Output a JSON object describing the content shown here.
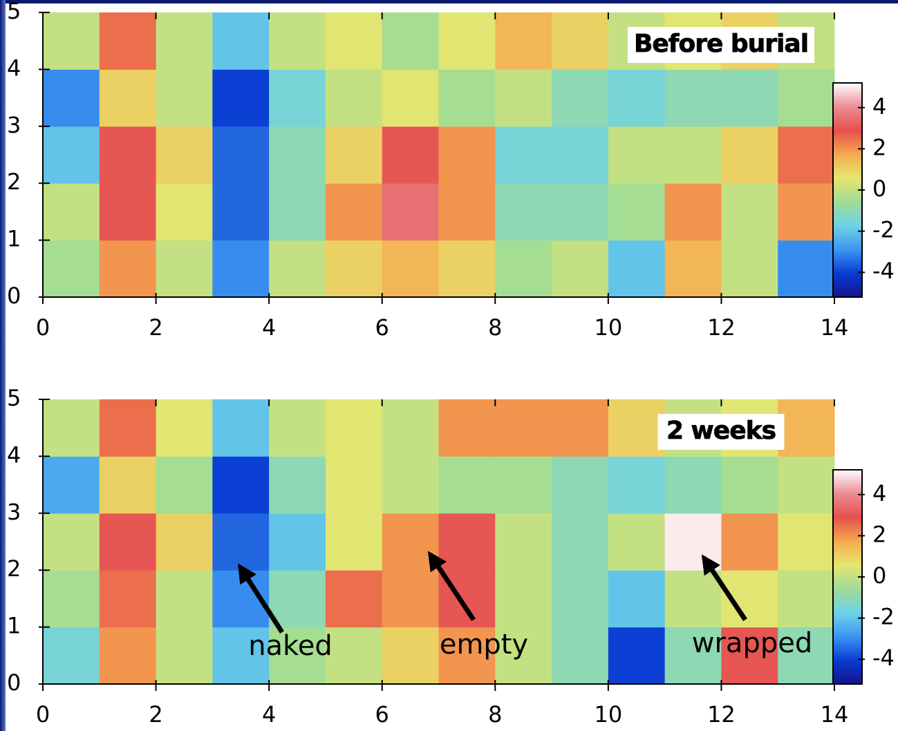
{
  "chart_data": [
    {
      "type": "heatmap",
      "title": "Before burial",
      "xbins": [
        0,
        1,
        2,
        3,
        4,
        5,
        6,
        7,
        8,
        9,
        10,
        11,
        12,
        13,
        14
      ],
      "ybins": [
        0,
        1,
        2,
        3,
        4,
        5
      ],
      "z": [
        [
          -0.5,
          2,
          0,
          -3,
          0,
          1,
          1.5,
          1,
          -0.5,
          0,
          -2,
          1.5,
          0,
          -3
        ],
        [
          0,
          3,
          0.5,
          -3.5,
          -1,
          2,
          3.5,
          2,
          -1,
          -1,
          -0.5,
          2,
          0,
          2
        ],
        [
          -2,
          3,
          1,
          -3.5,
          -1,
          1,
          3,
          2,
          -1.5,
          -1.5,
          0,
          0,
          1,
          2.5
        ],
        [
          -3,
          1,
          0,
          -4,
          -1.5,
          0,
          0.5,
          -0.5,
          0,
          -1,
          -1.5,
          -1,
          -1,
          -0.5
        ],
        [
          0,
          2.5,
          0,
          -2,
          0,
          0.5,
          -0.5,
          0.5,
          1.5,
          1,
          0,
          0.5,
          1,
          0
        ]
      ],
      "xlim": [
        0,
        14
      ],
      "ylim": [
        0,
        5
      ],
      "xticks": [
        0,
        2,
        4,
        6,
        8,
        10,
        12,
        14
      ],
      "yticks": [
        0,
        1,
        2,
        3,
        4,
        5
      ],
      "clim": [
        -5.2,
        5.2
      ],
      "cticks": [
        -4,
        -2,
        0,
        2,
        4
      ],
      "colorscale": [
        "#14148c",
        "#0a3cd2",
        "#3c96f0",
        "#6ed2e6",
        "#a0dc96",
        "#e6e66e",
        "#f5aa50",
        "#e6504b",
        "#eb8c96",
        "#ffffff"
      ]
    },
    {
      "type": "heatmap",
      "title": "2 weeks",
      "xbins": [
        0,
        1,
        2,
        3,
        4,
        5,
        6,
        7,
        8,
        9,
        10,
        11,
        12,
        13,
        14
      ],
      "ybins": [
        0,
        1,
        2,
        3,
        4,
        5
      ],
      "z": [
        [
          -1.5,
          2,
          0,
          -2,
          -0.5,
          0,
          1,
          2,
          0,
          -1,
          -4,
          -1,
          3,
          -1
        ],
        [
          -0.5,
          2.5,
          0,
          -3,
          -1,
          2.5,
          2,
          3,
          0,
          -1,
          -2,
          0,
          0.5,
          0
        ],
        [
          0,
          3,
          1,
          -3.5,
          -2,
          0.5,
          2,
          3,
          0,
          -1,
          0,
          5,
          2,
          0.5
        ],
        [
          -2.5,
          1,
          -0.5,
          -4,
          -1,
          0.5,
          0,
          -0.5,
          -0.5,
          -1,
          -1.5,
          -1,
          -0.5,
          0
        ],
        [
          0,
          2.5,
          0.5,
          -2,
          0,
          0.5,
          0,
          2,
          2,
          2,
          1,
          0,
          0.5,
          1.5
        ]
      ],
      "xlim": [
        0,
        14
      ],
      "ylim": [
        0,
        5
      ],
      "xticks": [
        0,
        2,
        4,
        6,
        8,
        10,
        12,
        14
      ],
      "yticks": [
        0,
        1,
        2,
        3,
        4,
        5
      ],
      "clim": [
        -5.2,
        5.2
      ],
      "cticks": [
        -4,
        -2,
        0,
        2,
        4
      ],
      "colorscale": [
        "#14148c",
        "#0a3cd2",
        "#3c96f0",
        "#6ed2e6",
        "#a0dc96",
        "#e6e66e",
        "#f5aa50",
        "#e6504b",
        "#eb8c96",
        "#ffffff"
      ],
      "annotations": [
        "naked",
        "empty",
        "wrapped"
      ]
    }
  ]
}
